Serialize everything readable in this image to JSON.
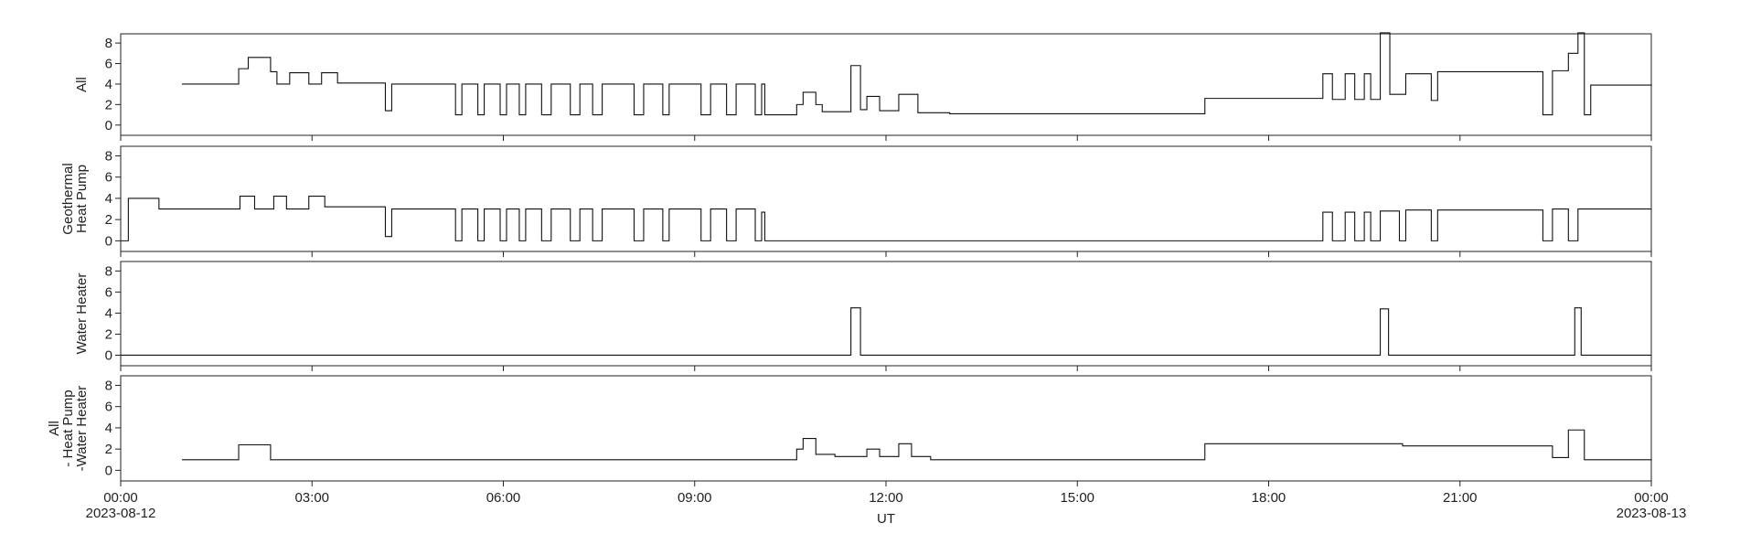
{
  "chart_data": [
    {
      "type": "line",
      "ylabel": [
        "All"
      ],
      "color": "#111111",
      "x": [
        0.96,
        1.85,
        2.0,
        2.35,
        2.45,
        2.65,
        2.95,
        3.15,
        3.4,
        4.15,
        4.25,
        5.25,
        5.35,
        5.6,
        5.7,
        5.95,
        6.05,
        6.25,
        6.35,
        6.6,
        6.75,
        7.05,
        7.2,
        7.4,
        7.55,
        8.05,
        8.2,
        8.5,
        8.6,
        9.1,
        9.25,
        9.5,
        9.65,
        9.95,
        10.05,
        10.1,
        10.6,
        10.7,
        10.9,
        11.0,
        11.45,
        11.6,
        11.7,
        11.9,
        12.2,
        12.5,
        13.0,
        17.0,
        18.85,
        19.0,
        19.2,
        19.35,
        19.5,
        19.6,
        19.75,
        19.9,
        20.15,
        20.55,
        20.65,
        22.3,
        22.45,
        22.7,
        22.85,
        22.95,
        23.05,
        24
      ],
      "values": [
        4,
        5.5,
        6.6,
        5.2,
        4,
        5.1,
        4,
        5.1,
        4.1,
        1.4,
        4,
        1,
        4,
        1,
        4,
        1,
        4,
        1,
        4,
        1,
        4,
        1,
        4,
        1,
        4,
        1,
        4,
        1,
        4,
        1,
        4,
        1,
        4,
        1,
        4,
        1,
        2,
        3.2,
        2,
        1.3,
        5.8,
        1.5,
        2.8,
        1.4,
        3,
        1.2,
        1.1,
        2.6,
        5,
        2.5,
        5,
        2.5,
        5,
        2.5,
        9,
        3,
        5,
        2.4,
        5.2,
        1,
        5.3,
        7,
        9,
        1,
        3.9,
        3.8
      ],
      "xlim": [
        0,
        24
      ],
      "xticks": [
        0,
        3,
        6,
        9,
        12,
        15,
        18,
        21,
        24
      ],
      "ylim": [
        -1,
        8.9
      ],
      "yticks": [
        0,
        2,
        4,
        6,
        8
      ]
    },
    {
      "type": "line",
      "ylabel": [
        "Geothermal",
        "Heat Pump"
      ],
      "color": "#111111",
      "x": [
        0,
        0.12,
        0.6,
        1.87,
        2.1,
        2.4,
        2.6,
        2.95,
        3.2,
        4.15,
        4.25,
        5.25,
        5.35,
        5.6,
        5.7,
        5.95,
        6.05,
        6.25,
        6.35,
        6.6,
        6.75,
        7.05,
        7.2,
        7.4,
        7.55,
        8.05,
        8.2,
        8.5,
        8.6,
        9.1,
        9.25,
        9.5,
        9.65,
        9.95,
        10.05,
        10.1,
        18.85,
        19.0,
        19.2,
        19.35,
        19.5,
        19.6,
        19.75,
        20.05,
        20.15,
        20.55,
        20.65,
        22.3,
        22.45,
        22.7,
        22.85,
        24
      ],
      "values": [
        0,
        4,
        3,
        4.2,
        3,
        4.2,
        3,
        4.2,
        3.2,
        0.4,
        3,
        0,
        3,
        0,
        3,
        0,
        3,
        0,
        3,
        0,
        3,
        0,
        3,
        0,
        3,
        0,
        3,
        0,
        3,
        0,
        3,
        0,
        3,
        0,
        2.7,
        0,
        2.7,
        0,
        2.7,
        0,
        2.7,
        0,
        2.8,
        0,
        2.9,
        0,
        2.9,
        0,
        3,
        0,
        3,
        3
      ],
      "xlim": [
        0,
        24
      ],
      "xticks": [
        0,
        3,
        6,
        9,
        12,
        15,
        18,
        21,
        24
      ],
      "ylim": [
        -1,
        8.9
      ],
      "yticks": [
        0,
        2,
        4,
        6,
        8
      ]
    },
    {
      "type": "line",
      "ylabel": [
        "Water Heater"
      ],
      "color": "#111111",
      "x": [
        0,
        11.45,
        11.6,
        19.75,
        19.88,
        22.8,
        22.9,
        24
      ],
      "values": [
        0,
        4.5,
        0,
        4.4,
        0,
        4.5,
        0,
        0
      ],
      "xlim": [
        0,
        24
      ],
      "xticks": [
        0,
        3,
        6,
        9,
        12,
        15,
        18,
        21,
        24
      ],
      "ylim": [
        -1,
        8.9
      ],
      "yticks": [
        0,
        2,
        4,
        6,
        8
      ]
    },
    {
      "type": "line",
      "ylabel": [
        "All",
        "- Heat Pump",
        "-Water Heater"
      ],
      "color": "#111111",
      "x": [
        0.96,
        1.85,
        2.35,
        10.6,
        10.7,
        10.9,
        11.2,
        11.7,
        11.9,
        12.2,
        12.4,
        12.7,
        17.0,
        20.1,
        22.3,
        22.45,
        22.7,
        22.95,
        24
      ],
      "values": [
        1,
        2.4,
        1,
        2,
        3,
        1.5,
        1.3,
        2,
        1.3,
        2.5,
        1.3,
        1,
        2.5,
        2.3,
        2.3,
        1.2,
        3.8,
        1,
        0.9
      ],
      "xlim": [
        0,
        24
      ],
      "xticks": [
        {
          "value": 0,
          "label": "00:00"
        },
        {
          "value": 3,
          "label": "03:00"
        },
        {
          "value": 6,
          "label": "06:00"
        },
        {
          "value": 9,
          "label": "09:00"
        },
        {
          "value": 12,
          "label": "12:00"
        },
        {
          "value": 15,
          "label": "15:00"
        },
        {
          "value": 18,
          "label": "18:00"
        },
        {
          "value": 21,
          "label": "21:00"
        },
        {
          "value": 24,
          "label": "00:00"
        }
      ],
      "xtick_dates": [
        {
          "value": 0,
          "label": "2023-08-12"
        },
        {
          "value": 24,
          "label": "2023-08-13"
        }
      ],
      "xlabel": "UT",
      "ylim": [
        -1,
        8.9
      ],
      "yticks": [
        0,
        2,
        4,
        6,
        8
      ]
    }
  ]
}
